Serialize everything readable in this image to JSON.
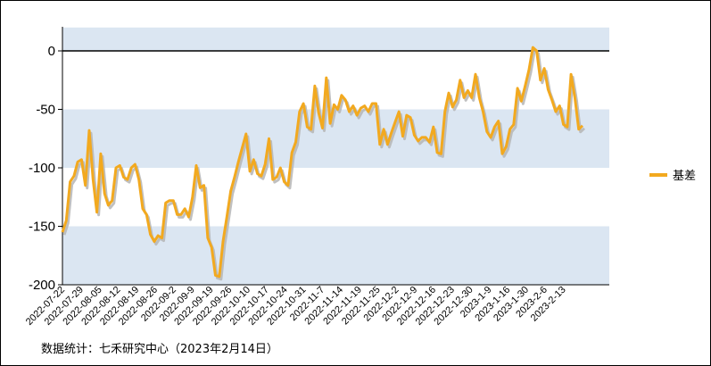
{
  "colors": {
    "series": "#f2a91f",
    "band": "#dbe6f2",
    "shadow": "#b5b5b5",
    "axis": "#000000"
  },
  "source_note": "数据统计：七禾研究中心（2023年2月14日）",
  "chart_data": {
    "type": "line",
    "ylim": [
      -200,
      20
    ],
    "y_ticks": [
      0,
      -50,
      -100,
      -150,
      -200
    ],
    "y_tick_labels": [
      "0",
      "-50",
      "-100",
      "-150",
      "-200"
    ],
    "grid": false,
    "bands": [
      [
        -50,
        -100
      ],
      [
        -150,
        -200
      ],
      [
        0,
        20
      ]
    ],
    "legend_placement": "right",
    "x_tick_labels": [
      "2022-07-22",
      "2022-07-29",
      "2022-08-05",
      "2022-08-12",
      "2022-08-19",
      "2022-08-26",
      "2022-09-2",
      "2022-09-9",
      "2022-09-19",
      "2022-09-26",
      "2022-10-10",
      "2022-10-17",
      "2022-10-24",
      "2022-10-31",
      "2022-11-7",
      "2022-11-14",
      "2022-11-19",
      "2022-11-25",
      "2022-12-2",
      "2022-12-9",
      "2022-12-16",
      "2022-12-23",
      "2022-12-30",
      "2023-1-9",
      "2023-1-16",
      "2023-1-30",
      "2023-2-6",
      "2023-2-13"
    ],
    "series": [
      {
        "name": "基差",
        "values": [
          -155,
          -145,
          -112,
          -107,
          -95,
          -93,
          -115,
          -68,
          -110,
          -138,
          -88,
          -122,
          -132,
          -128,
          -100,
          -98,
          -108,
          -110,
          -100,
          -97,
          -110,
          -135,
          -140,
          -157,
          -163,
          -158,
          -160,
          -130,
          -128,
          -128,
          -140,
          -140,
          -135,
          -142,
          -125,
          -98,
          -117,
          -115,
          -160,
          -168,
          -192,
          -193,
          -163,
          -142,
          -120,
          -108,
          -95,
          -83,
          -71,
          -103,
          -93,
          -105,
          -107,
          -97,
          -75,
          -110,
          -108,
          -100,
          -112,
          -115,
          -87,
          -78,
          -52,
          -45,
          -65,
          -67,
          -30,
          -53,
          -66,
          -23,
          -62,
          -46,
          -50,
          -38,
          -42,
          -52,
          -47,
          -55,
          -49,
          -47,
          -52,
          -45,
          -45,
          -80,
          -67,
          -80,
          -70,
          -61,
          -52,
          -73,
          -55,
          -57,
          -72,
          -77,
          -74,
          -74,
          -78,
          -65,
          -87,
          -88,
          -52,
          -36,
          -48,
          -42,
          -25,
          -40,
          -34,
          -40,
          -20,
          -40,
          -52,
          -69,
          -74,
          -65,
          -60,
          -88,
          -82,
          -67,
          -63,
          -32,
          -43,
          -30,
          -16,
          3,
          0,
          -25,
          -15,
          -33,
          -42,
          -52,
          -47,
          -63,
          -65,
          -20,
          -40,
          -67,
          -64
        ]
      }
    ]
  }
}
